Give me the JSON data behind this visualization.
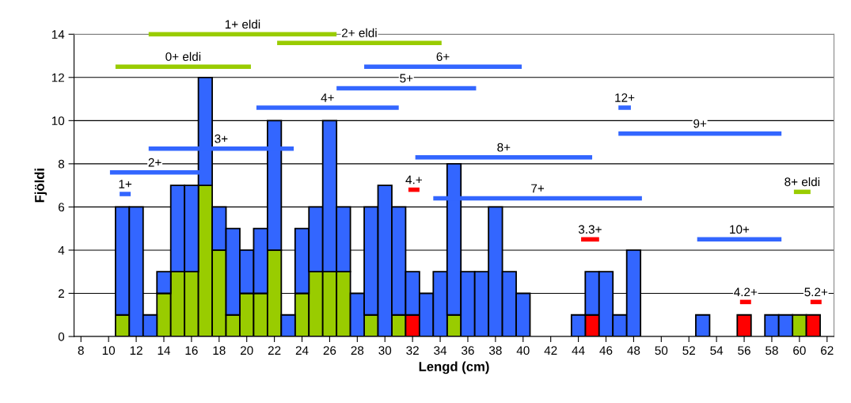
{
  "chart_data": {
    "type": "bar",
    "stacked": true,
    "xlabel": "Lengd (cm)",
    "ylabel": "Fjöldi",
    "x": [
      8,
      9,
      10,
      11,
      12,
      13,
      14,
      15,
      16,
      17,
      18,
      19,
      20,
      21,
      22,
      23,
      24,
      25,
      26,
      27,
      28,
      29,
      30,
      31,
      32,
      33,
      34,
      35,
      36,
      37,
      38,
      39,
      40,
      41,
      42,
      43,
      44,
      45,
      46,
      47,
      48,
      49,
      50,
      51,
      52,
      53,
      54,
      55,
      56,
      57,
      58,
      59,
      60,
      61,
      62
    ],
    "xlim": [
      7.5,
      62.5
    ],
    "xticks": [
      8,
      10,
      12,
      14,
      16,
      18,
      20,
      22,
      24,
      26,
      28,
      30,
      32,
      34,
      36,
      38,
      40,
      42,
      44,
      46,
      48,
      50,
      52,
      54,
      56,
      58,
      60,
      62
    ],
    "ylim": [
      0,
      14
    ],
    "yticks": [
      0,
      2,
      4,
      6,
      8,
      10,
      12,
      14
    ],
    "grid": "y",
    "legend": false,
    "series": [
      {
        "color": "#99cc00",
        "values": [
          0,
          0,
          0,
          1,
          0,
          0,
          2,
          3,
          3,
          7,
          4,
          1,
          2,
          2,
          4,
          0,
          2,
          3,
          3,
          3,
          0,
          1,
          0,
          1,
          0,
          0,
          0,
          1,
          0,
          0,
          0,
          0,
          0,
          0,
          0,
          0,
          0,
          0,
          0,
          0,
          0,
          0,
          0,
          0,
          0,
          0,
          0,
          0,
          0,
          0,
          0,
          0,
          1,
          0,
          0
        ]
      },
      {
        "color": "#ff0000",
        "values": [
          0,
          0,
          0,
          0,
          0,
          0,
          0,
          0,
          0,
          0,
          0,
          0,
          0,
          0,
          0,
          0,
          0,
          0,
          0,
          0,
          0,
          0,
          0,
          0,
          1,
          0,
          0,
          0,
          0,
          0,
          0,
          0,
          0,
          0,
          0,
          0,
          0,
          1,
          0,
          0,
          0,
          0,
          0,
          0,
          0,
          0,
          0,
          0,
          1,
          0,
          0,
          0,
          0,
          1,
          0
        ]
      },
      {
        "color": "#3366ff",
        "values": [
          0,
          0,
          0,
          5,
          6,
          1,
          1,
          4,
          4,
          5,
          2,
          4,
          2,
          3,
          6,
          1,
          3,
          3,
          7,
          3,
          2,
          5,
          7,
          5,
          2,
          2,
          3,
          7,
          3,
          3,
          6,
          3,
          2,
          0,
          0,
          0,
          1,
          2,
          3,
          1,
          4,
          0,
          0,
          0,
          0,
          1,
          0,
          0,
          0,
          0,
          1,
          1,
          0,
          0,
          0
        ]
      },
      {
        "type": "line",
        "name": "0+ eldi",
        "color": "#99cc00",
        "x": [
          10.5,
          20.3
        ],
        "values": [
          12.5,
          12.5
        ]
      },
      {
        "type": "line",
        "name": "1+ eldi",
        "color": "#99cc00",
        "x": [
          12.9,
          26.5
        ],
        "values": [
          14,
          14
        ]
      },
      {
        "type": "line",
        "name": "2+ eldi",
        "color": "#99cc00",
        "x": [
          22.2,
          34.1
        ],
        "values": [
          13.6,
          13.6
        ]
      },
      {
        "type": "line",
        "name": "8+ eldi",
        "color": "#99cc00",
        "x": [
          59.6,
          60.8
        ],
        "values": [
          6.7,
          6.7
        ]
      },
      {
        "type": "line",
        "name": "1+",
        "color": "#3366ff",
        "x": [
          10.8,
          11.6
        ],
        "values": [
          6.6,
          6.6
        ]
      },
      {
        "type": "line",
        "name": "2+",
        "color": "#3366ff",
        "x": [
          10.1,
          16.6
        ],
        "values": [
          7.6,
          7.6
        ]
      },
      {
        "type": "line",
        "name": "3+",
        "color": "#3366ff",
        "x": [
          12.9,
          23.4
        ],
        "values": [
          8.7,
          8.7
        ]
      },
      {
        "type": "line",
        "name": "4+",
        "color": "#3366ff",
        "x": [
          20.7,
          31.0
        ],
        "values": [
          10.6,
          10.6
        ]
      },
      {
        "type": "line",
        "name": "5+",
        "color": "#3366ff",
        "x": [
          26.5,
          36.6
        ],
        "values": [
          11.5,
          11.5
        ]
      },
      {
        "type": "line",
        "name": "6+",
        "color": "#3366ff",
        "x": [
          28.5,
          39.9
        ],
        "values": [
          12.5,
          12.5
        ]
      },
      {
        "type": "line",
        "name": "7+",
        "color": "#3366ff",
        "x": [
          33.5,
          48.6
        ],
        "values": [
          6.4,
          6.4
        ]
      },
      {
        "type": "line",
        "name": "8+",
        "color": "#3366ff",
        "x": [
          32.2,
          45.0
        ],
        "values": [
          8.3,
          8.3
        ]
      },
      {
        "type": "line",
        "name": "9+",
        "color": "#3366ff",
        "x": [
          46.9,
          58.7
        ],
        "values": [
          9.4,
          9.4
        ]
      },
      {
        "type": "line",
        "name": "10+",
        "color": "#3366ff",
        "x": [
          52.6,
          58.7
        ],
        "values": [
          4.5,
          4.5
        ]
      },
      {
        "type": "line",
        "name": "12+",
        "color": "#3366ff",
        "x": [
          46.9,
          47.8
        ],
        "values": [
          10.6,
          10.6
        ]
      },
      {
        "type": "line",
        "name": "4.+",
        "color": "#ff0000",
        "x": [
          31.7,
          32.5
        ],
        "values": [
          6.8,
          6.8
        ]
      },
      {
        "type": "line",
        "name": "3.3+",
        "color": "#ff0000",
        "x": [
          44.2,
          45.5
        ],
        "values": [
          4.5,
          4.5
        ]
      },
      {
        "type": "line",
        "name": "4.2+",
        "color": "#ff0000",
        "x": [
          55.7,
          56.5
        ],
        "values": [
          1.6,
          1.6
        ]
      },
      {
        "type": "line",
        "name": "5.2+",
        "color": "#ff0000",
        "x": [
          60.8,
          61.6
        ],
        "values": [
          1.6,
          1.6
        ]
      }
    ]
  }
}
